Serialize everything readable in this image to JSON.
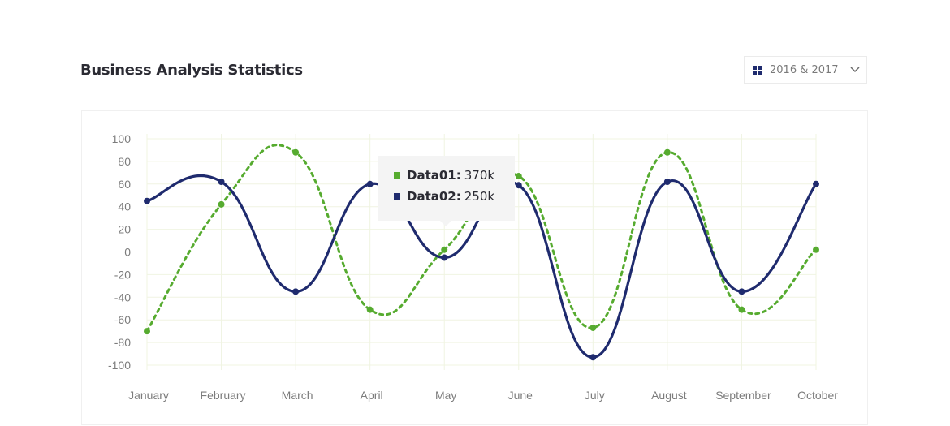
{
  "header": {
    "title": "Business Analysis Statistics",
    "select_value": "2016 & 2017"
  },
  "colors": {
    "series1": "#56ab2f",
    "series2": "#1f2b6e",
    "grid": "#f0f4e2",
    "tick": "#7c7c7c"
  },
  "tooltip": {
    "rows": [
      {
        "name": "Data01:",
        "value": "370k",
        "color": "#56ab2f"
      },
      {
        "name": "Data02:",
        "value": "250k",
        "color": "#1f2b6e"
      }
    ]
  },
  "chart_data": {
    "type": "line",
    "title": "Business Analysis Statistics",
    "categories": [
      "January",
      "February",
      "March",
      "April",
      "May",
      "June",
      "July",
      "August",
      "September",
      "October"
    ],
    "ylim": [
      -100,
      100
    ],
    "yticks": [
      100,
      80,
      60,
      40,
      20,
      0,
      -20,
      -40,
      -60,
      -80,
      -100
    ],
    "grid": true,
    "series": [
      {
        "name": "Data01",
        "style": "dashed",
        "values": [
          -70,
          42,
          88,
          -51,
          2,
          67,
          -67,
          88,
          -51,
          2
        ]
      },
      {
        "name": "Data02",
        "style": "solid",
        "values": [
          45,
          62,
          -35,
          60,
          -5,
          59,
          -93,
          62,
          -35,
          60
        ]
      }
    ]
  }
}
